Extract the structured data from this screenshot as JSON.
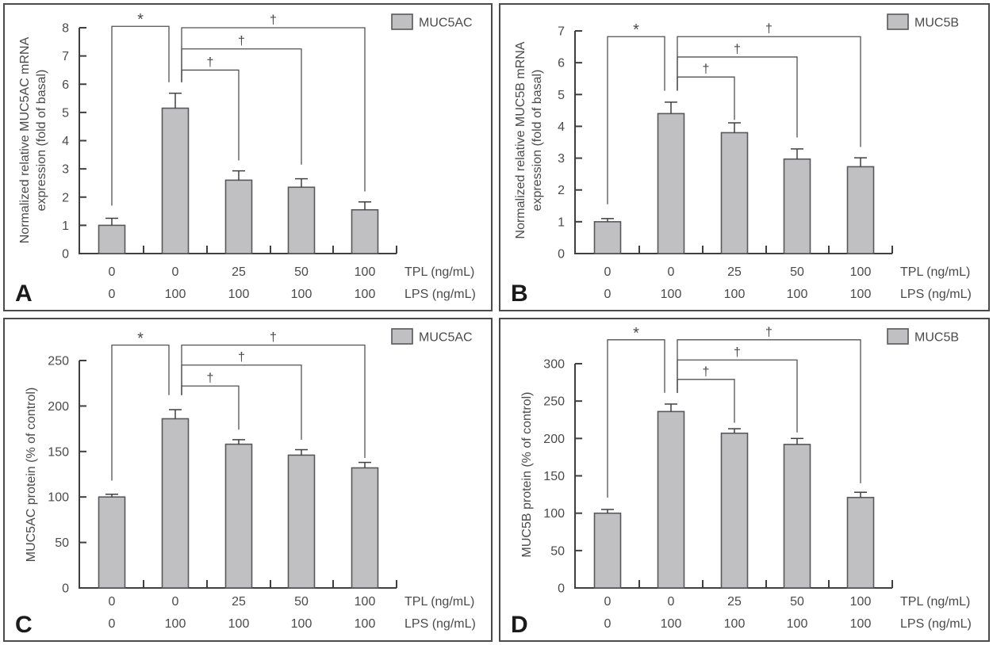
{
  "figure": {
    "background": "#ffffff",
    "panel_border_color": "#4b4b4d",
    "bar_fill": "#c0c0c3",
    "bar_stroke": "#58585c",
    "axis_color": "#3f3f41",
    "text_color": "#4a4a4c",
    "bracket_color": "#515153",
    "letter_color": "#1b1b1b"
  },
  "chart_data": [
    {
      "panel": "A",
      "type": "bar",
      "legend": "MUC5AC",
      "ylabel_lines": [
        "Normalized relative MUC5AC mRNA",
        "expression (fold of basal)"
      ],
      "ylim": [
        0,
        8
      ],
      "ytick_step": 1,
      "x_rows": [
        {
          "label": "TPL (ng/mL)",
          "values": [
            "0",
            "0",
            "25",
            "50",
            "100"
          ]
        },
        {
          "label": "LPS (ng/mL)",
          "values": [
            "0",
            "100",
            "100",
            "100",
            "100"
          ]
        }
      ],
      "values": [
        1.0,
        5.15,
        2.6,
        2.35,
        1.55
      ],
      "errors": [
        0.25,
        0.53,
        0.33,
        0.3,
        0.28
      ],
      "significance": [
        {
          "symbol": "*",
          "from": 0,
          "to": 1,
          "top": 8.05,
          "from_drop": 1.7,
          "to_drop": 6.07
        },
        {
          "symbol": "†",
          "from": 1,
          "to": 2,
          "top": 6.5,
          "from_drop": 6.07,
          "to_drop": 3.3
        },
        {
          "symbol": "†",
          "from": 1,
          "to": 3,
          "top": 7.25,
          "from_drop": 6.07,
          "to_drop": 3.15
        },
        {
          "symbol": "†",
          "from": 1,
          "to": 4,
          "top": 8.0,
          "from_drop": 6.07,
          "to_drop": 2.2
        }
      ]
    },
    {
      "panel": "B",
      "type": "bar",
      "legend": "MUC5B",
      "ylabel_lines": [
        "Normalized relative MUC5B mRNA",
        "expression (fold of basal)"
      ],
      "ylim": [
        0,
        7
      ],
      "ytick_step": 1,
      "x_rows": [
        {
          "label": "TPL (ng/mL)",
          "values": [
            "0",
            "0",
            "25",
            "50",
            "100"
          ]
        },
        {
          "label": "LPS (ng/mL)",
          "values": [
            "0",
            "100",
            "100",
            "100",
            "100"
          ]
        }
      ],
      "values": [
        1.0,
        4.4,
        3.8,
        2.97,
        2.73
      ],
      "errors": [
        0.1,
        0.36,
        0.31,
        0.32,
        0.28
      ],
      "significance": [
        {
          "symbol": "*",
          "from": 0,
          "to": 1,
          "top": 6.82,
          "from_drop": 1.55,
          "to_drop": 5.12
        },
        {
          "symbol": "†",
          "from": 1,
          "to": 2,
          "top": 5.55,
          "from_drop": 5.12,
          "to_drop": 4.2
        },
        {
          "symbol": "†",
          "from": 1,
          "to": 3,
          "top": 6.18,
          "from_drop": 5.12,
          "to_drop": 3.65
        },
        {
          "symbol": "†",
          "from": 1,
          "to": 4,
          "top": 6.82,
          "from_drop": 5.12,
          "to_drop": 3.35
        }
      ]
    },
    {
      "panel": "C",
      "type": "bar",
      "legend": "MUC5AC",
      "ylabel_lines": [
        "MUC5AC protein (% of control)"
      ],
      "ylim": [
        0,
        250
      ],
      "ytick_step": 50,
      "x_rows": [
        {
          "label": "TPL (ng/mL)",
          "values": [
            "0",
            "0",
            "25",
            "50",
            "100"
          ]
        },
        {
          "label": "LPS (ng/mL)",
          "values": [
            "0",
            "100",
            "100",
            "100",
            "100"
          ]
        }
      ],
      "values": [
        100,
        186,
        158,
        146,
        132
      ],
      "errors": [
        3,
        10,
        5,
        6,
        6
      ],
      "significance": [
        {
          "symbol": "*",
          "from": 0,
          "to": 1,
          "top": 267,
          "from_drop": 118,
          "to_drop": 212
        },
        {
          "symbol": "†",
          "from": 1,
          "to": 2,
          "top": 222,
          "from_drop": 212,
          "to_drop": 174
        },
        {
          "symbol": "†",
          "from": 1,
          "to": 3,
          "top": 245,
          "from_drop": 212,
          "to_drop": 163
        },
        {
          "symbol": "†",
          "from": 1,
          "to": 4,
          "top": 267,
          "from_drop": 212,
          "to_drop": 143
        }
      ]
    },
    {
      "panel": "D",
      "type": "bar",
      "legend": "MUC5B",
      "ylabel_lines": [
        "MUC5B protein (% of control)"
      ],
      "ylim": [
        0,
        300
      ],
      "ytick_step": 50,
      "x_rows": [
        {
          "label": "TPL (ng/mL)",
          "values": [
            "0",
            "0",
            "25",
            "50",
            "100"
          ]
        },
        {
          "label": "LPS (ng/mL)",
          "values": [
            "0",
            "100",
            "100",
            "100",
            "100"
          ]
        }
      ],
      "values": [
        100,
        236,
        207,
        192,
        121
      ],
      "errors": [
        5,
        10,
        6,
        8,
        7
      ],
      "significance": [
        {
          "symbol": "*",
          "from": 0,
          "to": 1,
          "top": 332,
          "from_drop": 121,
          "to_drop": 261
        },
        {
          "symbol": "†",
          "from": 1,
          "to": 2,
          "top": 279,
          "from_drop": 261,
          "to_drop": 221
        },
        {
          "symbol": "†",
          "from": 1,
          "to": 3,
          "top": 305,
          "from_drop": 261,
          "to_drop": 208
        },
        {
          "symbol": "†",
          "from": 1,
          "to": 4,
          "top": 332,
          "from_drop": 261,
          "to_drop": 140
        }
      ]
    }
  ]
}
